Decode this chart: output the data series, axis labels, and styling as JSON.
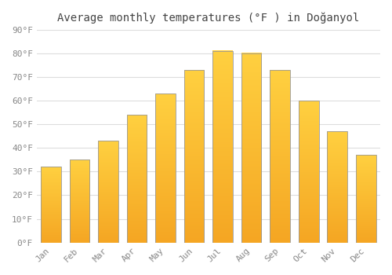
{
  "title": "Average monthly temperatures (°F ) in Doğanyol",
  "months": [
    "Jan",
    "Feb",
    "Mar",
    "Apr",
    "May",
    "Jun",
    "Jul",
    "Aug",
    "Sep",
    "Oct",
    "Nov",
    "Dec"
  ],
  "values": [
    32,
    35,
    43,
    54,
    63,
    73,
    81,
    80,
    73,
    60,
    47,
    37
  ],
  "bar_color_bottom": "#F5A623",
  "bar_color_top": "#FFD040",
  "bar_edge_color": "#999999",
  "background_color": "#FFFFFF",
  "grid_color": "#DDDDDD",
  "ylim": [
    0,
    90
  ],
  "yticks": [
    0,
    10,
    20,
    30,
    40,
    50,
    60,
    70,
    80,
    90
  ],
  "ytick_labels": [
    "0°F",
    "10°F",
    "20°F",
    "30°F",
    "40°F",
    "50°F",
    "60°F",
    "70°F",
    "80°F",
    "90°F"
  ],
  "title_fontsize": 10,
  "tick_fontsize": 8,
  "tick_color": "#888888"
}
